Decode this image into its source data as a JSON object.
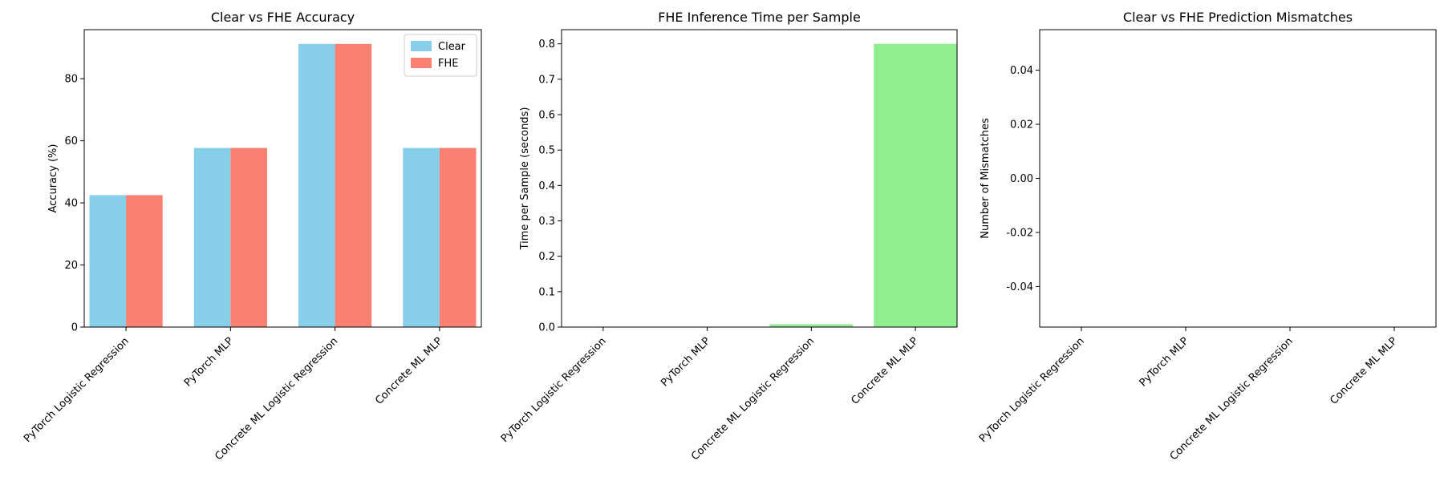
{
  "chart_data": [
    {
      "type": "bar",
      "title": "Clear vs FHE Accuracy",
      "xlabel": "",
      "ylabel": "Accuracy (%)",
      "categories": [
        "PyTorch Logistic Regression",
        "PyTorch MLP",
        "Concrete ML Logistic Regression",
        "Concrete ML MLP"
      ],
      "series": [
        {
          "name": "Clear",
          "values": [
            42.5,
            57.7,
            91.2,
            57.7
          ],
          "color": "#87ceeb"
        },
        {
          "name": "FHE",
          "values": [
            42.5,
            57.7,
            91.2,
            57.7
          ],
          "color": "#fa8072"
        }
      ],
      "ylim": [
        0,
        95.8
      ],
      "yticks": [
        0,
        20,
        40,
        60,
        80
      ],
      "legend": "top-right",
      "grid": false
    },
    {
      "type": "bar",
      "title": "FHE Inference Time per Sample",
      "xlabel": "",
      "ylabel": "Time per Sample (seconds)",
      "categories": [
        "PyTorch Logistic Regression",
        "PyTorch MLP",
        "Concrete ML Logistic Regression",
        "Concrete ML MLP"
      ],
      "values": [
        0,
        0,
        0.008,
        0.8
      ],
      "color": "#90ee90",
      "ylim": [
        0,
        0.84
      ],
      "yticks": [
        0.0,
        0.1,
        0.2,
        0.3,
        0.4,
        0.5,
        0.6,
        0.7,
        0.8
      ],
      "grid": false
    },
    {
      "type": "bar",
      "title": "Clear vs FHE Prediction Mismatches",
      "xlabel": "",
      "ylabel": "Number of Mismatches",
      "categories": [
        "PyTorch Logistic Regression",
        "PyTorch MLP",
        "Concrete ML Logistic Regression",
        "Concrete ML MLP"
      ],
      "values": [
        0,
        0,
        0,
        0
      ],
      "color": "#add8e6",
      "ylim": [
        -0.055,
        0.055
      ],
      "yticks": [
        -0.04,
        -0.02,
        0.0,
        0.02,
        0.04
      ],
      "grid": false
    }
  ]
}
